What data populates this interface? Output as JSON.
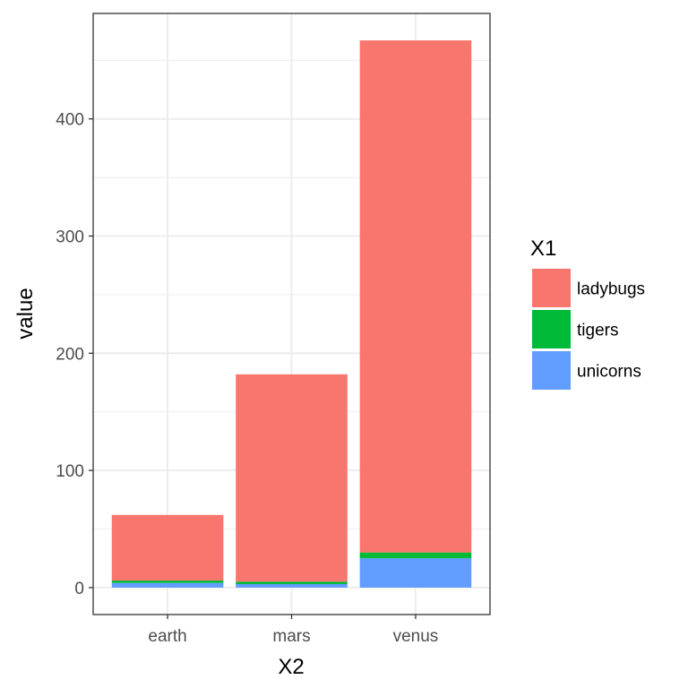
{
  "chart_data": {
    "type": "bar",
    "stacked": true,
    "categories": [
      "earth",
      "mars",
      "venus"
    ],
    "series": [
      {
        "name": "unicorns",
        "values": [
          4,
          3,
          25
        ],
        "color": "#619CFF"
      },
      {
        "name": "tigers",
        "values": [
          2,
          2,
          5
        ],
        "color": "#00BA38"
      },
      {
        "name": "ladybugs",
        "values": [
          56,
          177,
          437
        ],
        "color": "#F8766D"
      }
    ],
    "xlabel": "X2",
    "ylabel": "value",
    "ylim": [
      -23,
      490
    ],
    "yticks": [
      0,
      100,
      200,
      300,
      400
    ],
    "grid": true,
    "legend": {
      "title": "X1",
      "placement": "right",
      "entries": [
        {
          "label": "ladybugs",
          "color": "#F8766D"
        },
        {
          "label": "tigers",
          "color": "#00BA38"
        },
        {
          "label": "unicorns",
          "color": "#619CFF"
        }
      ]
    }
  }
}
